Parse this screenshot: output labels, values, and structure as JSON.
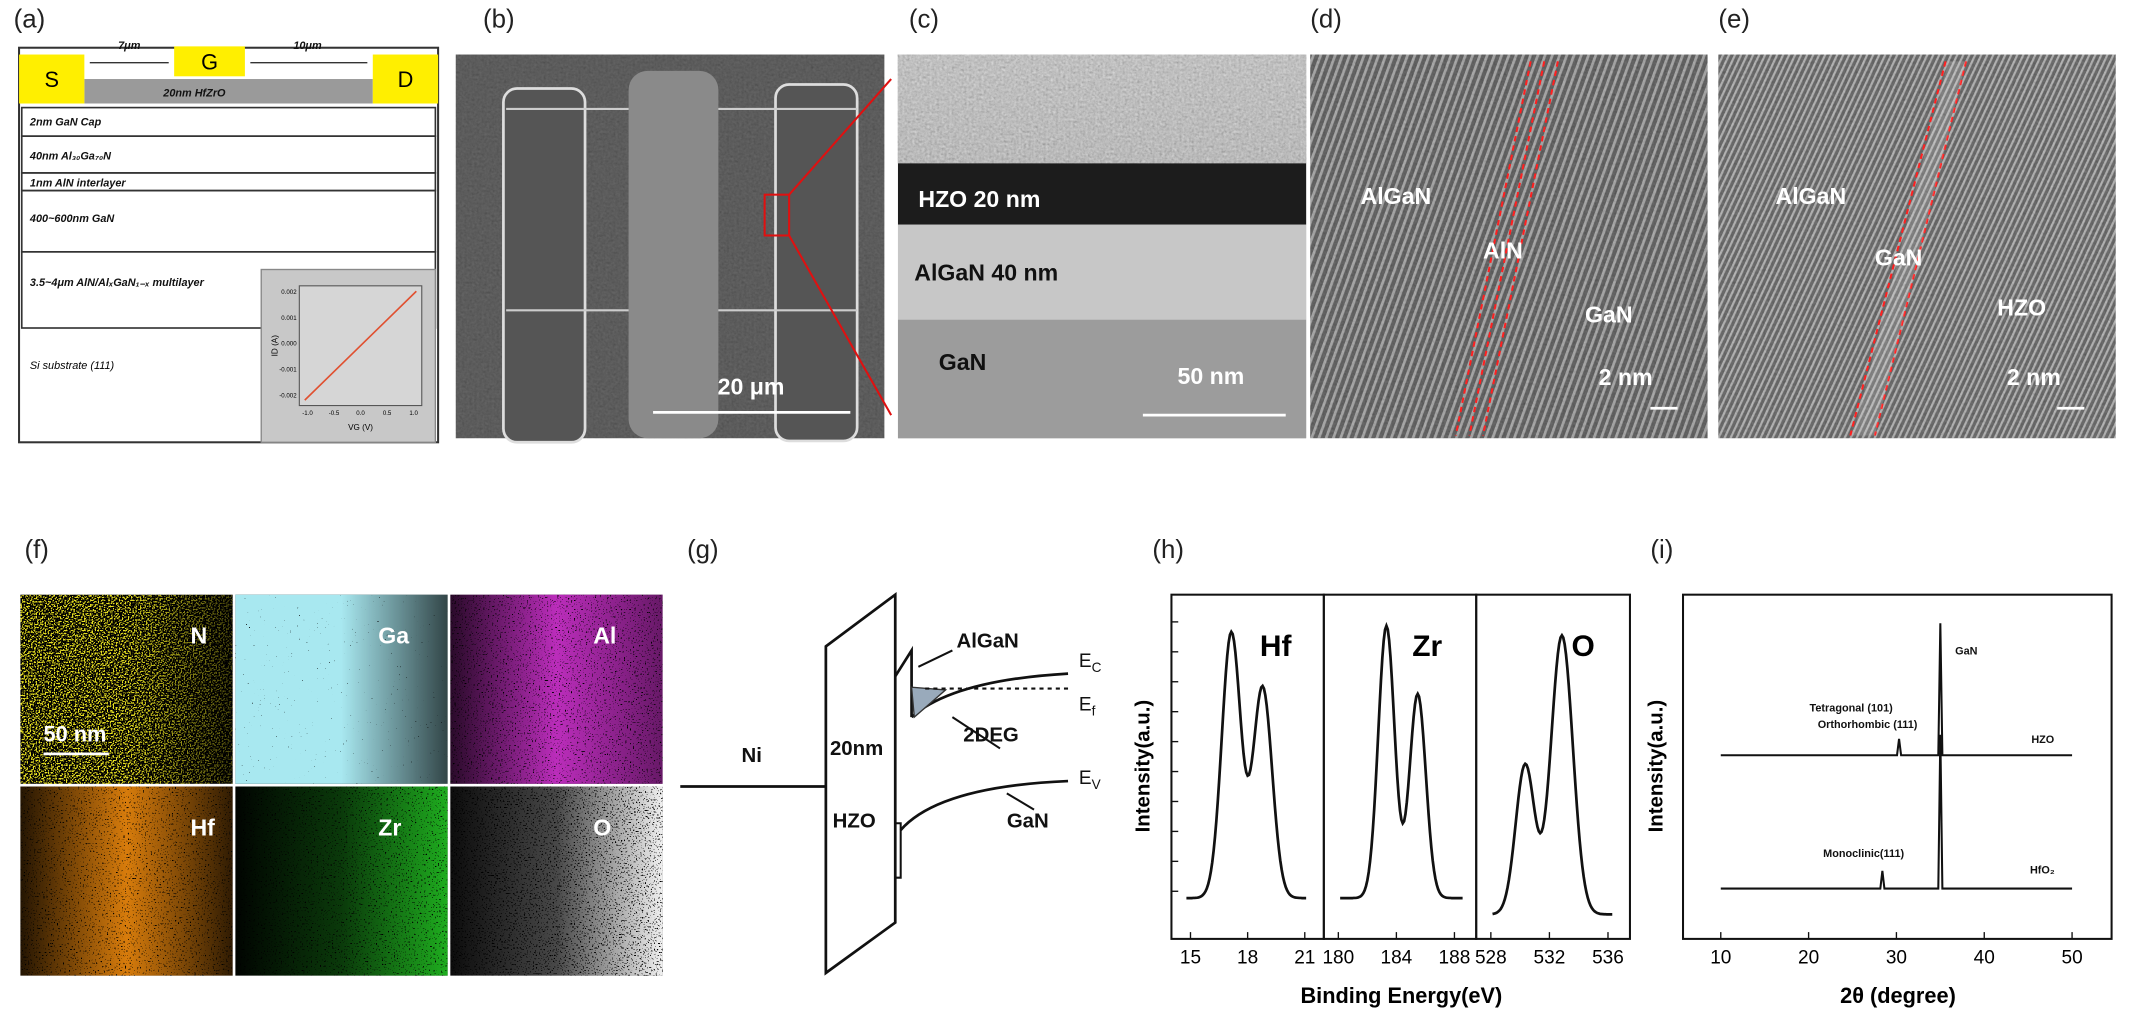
{
  "panels": {
    "a": {
      "label": "(a)",
      "source": "S",
      "gate": "G",
      "drain": "D",
      "sg_gap": "7μm",
      "gd_gap": "10μm",
      "dielectric": "20nm HfZrO",
      "layers": [
        "2nm GaN Cap",
        "40nm Al₃₀Ga₇₀N",
        "1nm AlN interlayer",
        "400~600nm GaN",
        "3.5~4μm AlN/AlₓGaN₁₋ₓ multilayer",
        "Si substrate (111)"
      ],
      "inset": {
        "ylabel": "ID (A)",
        "xlabel": "VG (V)",
        "yticks": [
          "0.002",
          "0.001",
          "0.000",
          "-0.001",
          "-0.002"
        ],
        "xticks": [
          "-1.0",
          "-0.5",
          "0.0",
          "0.5",
          "1.0"
        ]
      }
    },
    "b": {
      "label": "(b)",
      "scale": "20 μm"
    },
    "c": {
      "label": "(c)",
      "layers": [
        "HZO 20 nm",
        "AlGaN 40 nm",
        "GaN"
      ],
      "scale": "50 nm"
    },
    "d": {
      "label": "(d)",
      "regions": [
        "AlGaN",
        "AlN",
        "GaN"
      ],
      "scale": "2 nm"
    },
    "e": {
      "label": "(e)",
      "regions": [
        "AlGaN",
        "GaN",
        "HZO"
      ],
      "scale": "2 nm"
    },
    "f": {
      "label": "(f)",
      "elements": [
        "N",
        "Ga",
        "Al",
        "Hf",
        "Zr",
        "O"
      ],
      "scale": "50 nm"
    },
    "g": {
      "label": "(g)",
      "metal": "Ni",
      "thickness": "20nm",
      "oxide": "HZO",
      "barrier": "AlGaN",
      "channel": "2DEG",
      "substrate": "GaN",
      "ec": {
        "main": "E",
        "sub": "C"
      },
      "ef": {
        "main": "E",
        "sub": "f"
      },
      "ev": {
        "main": "E",
        "sub": "V"
      }
    },
    "h": {
      "label": "(h)",
      "xlabel": "Binding Energy(eV)",
      "ylabel": "Intensity(a.u.)",
      "subplots": [
        {
          "title": "Hf",
          "xlim": [
            14,
            22
          ],
          "xticks": [
            15,
            18,
            21
          ]
        },
        {
          "title": "Zr",
          "xlim": [
            179,
            189.5
          ],
          "xticks": [
            180,
            184,
            188
          ]
        },
        {
          "title": "O",
          "xlim": [
            527,
            537.5
          ],
          "xticks": [
            528,
            532,
            536
          ]
        }
      ]
    },
    "i": {
      "label": "(i)",
      "xlabel": "2θ (degree)",
      "ylabel": "Intensity(a.u.)",
      "xlim": [
        5.7,
        54.5
      ],
      "xticks": [
        10,
        20,
        30,
        40,
        50
      ],
      "annotations": [
        "GaN",
        "Tetragonal (101)",
        "Orthorhombic (111)",
        "HZO",
        "Monoclinic(111)",
        "HfO₂"
      ]
    }
  }
}
